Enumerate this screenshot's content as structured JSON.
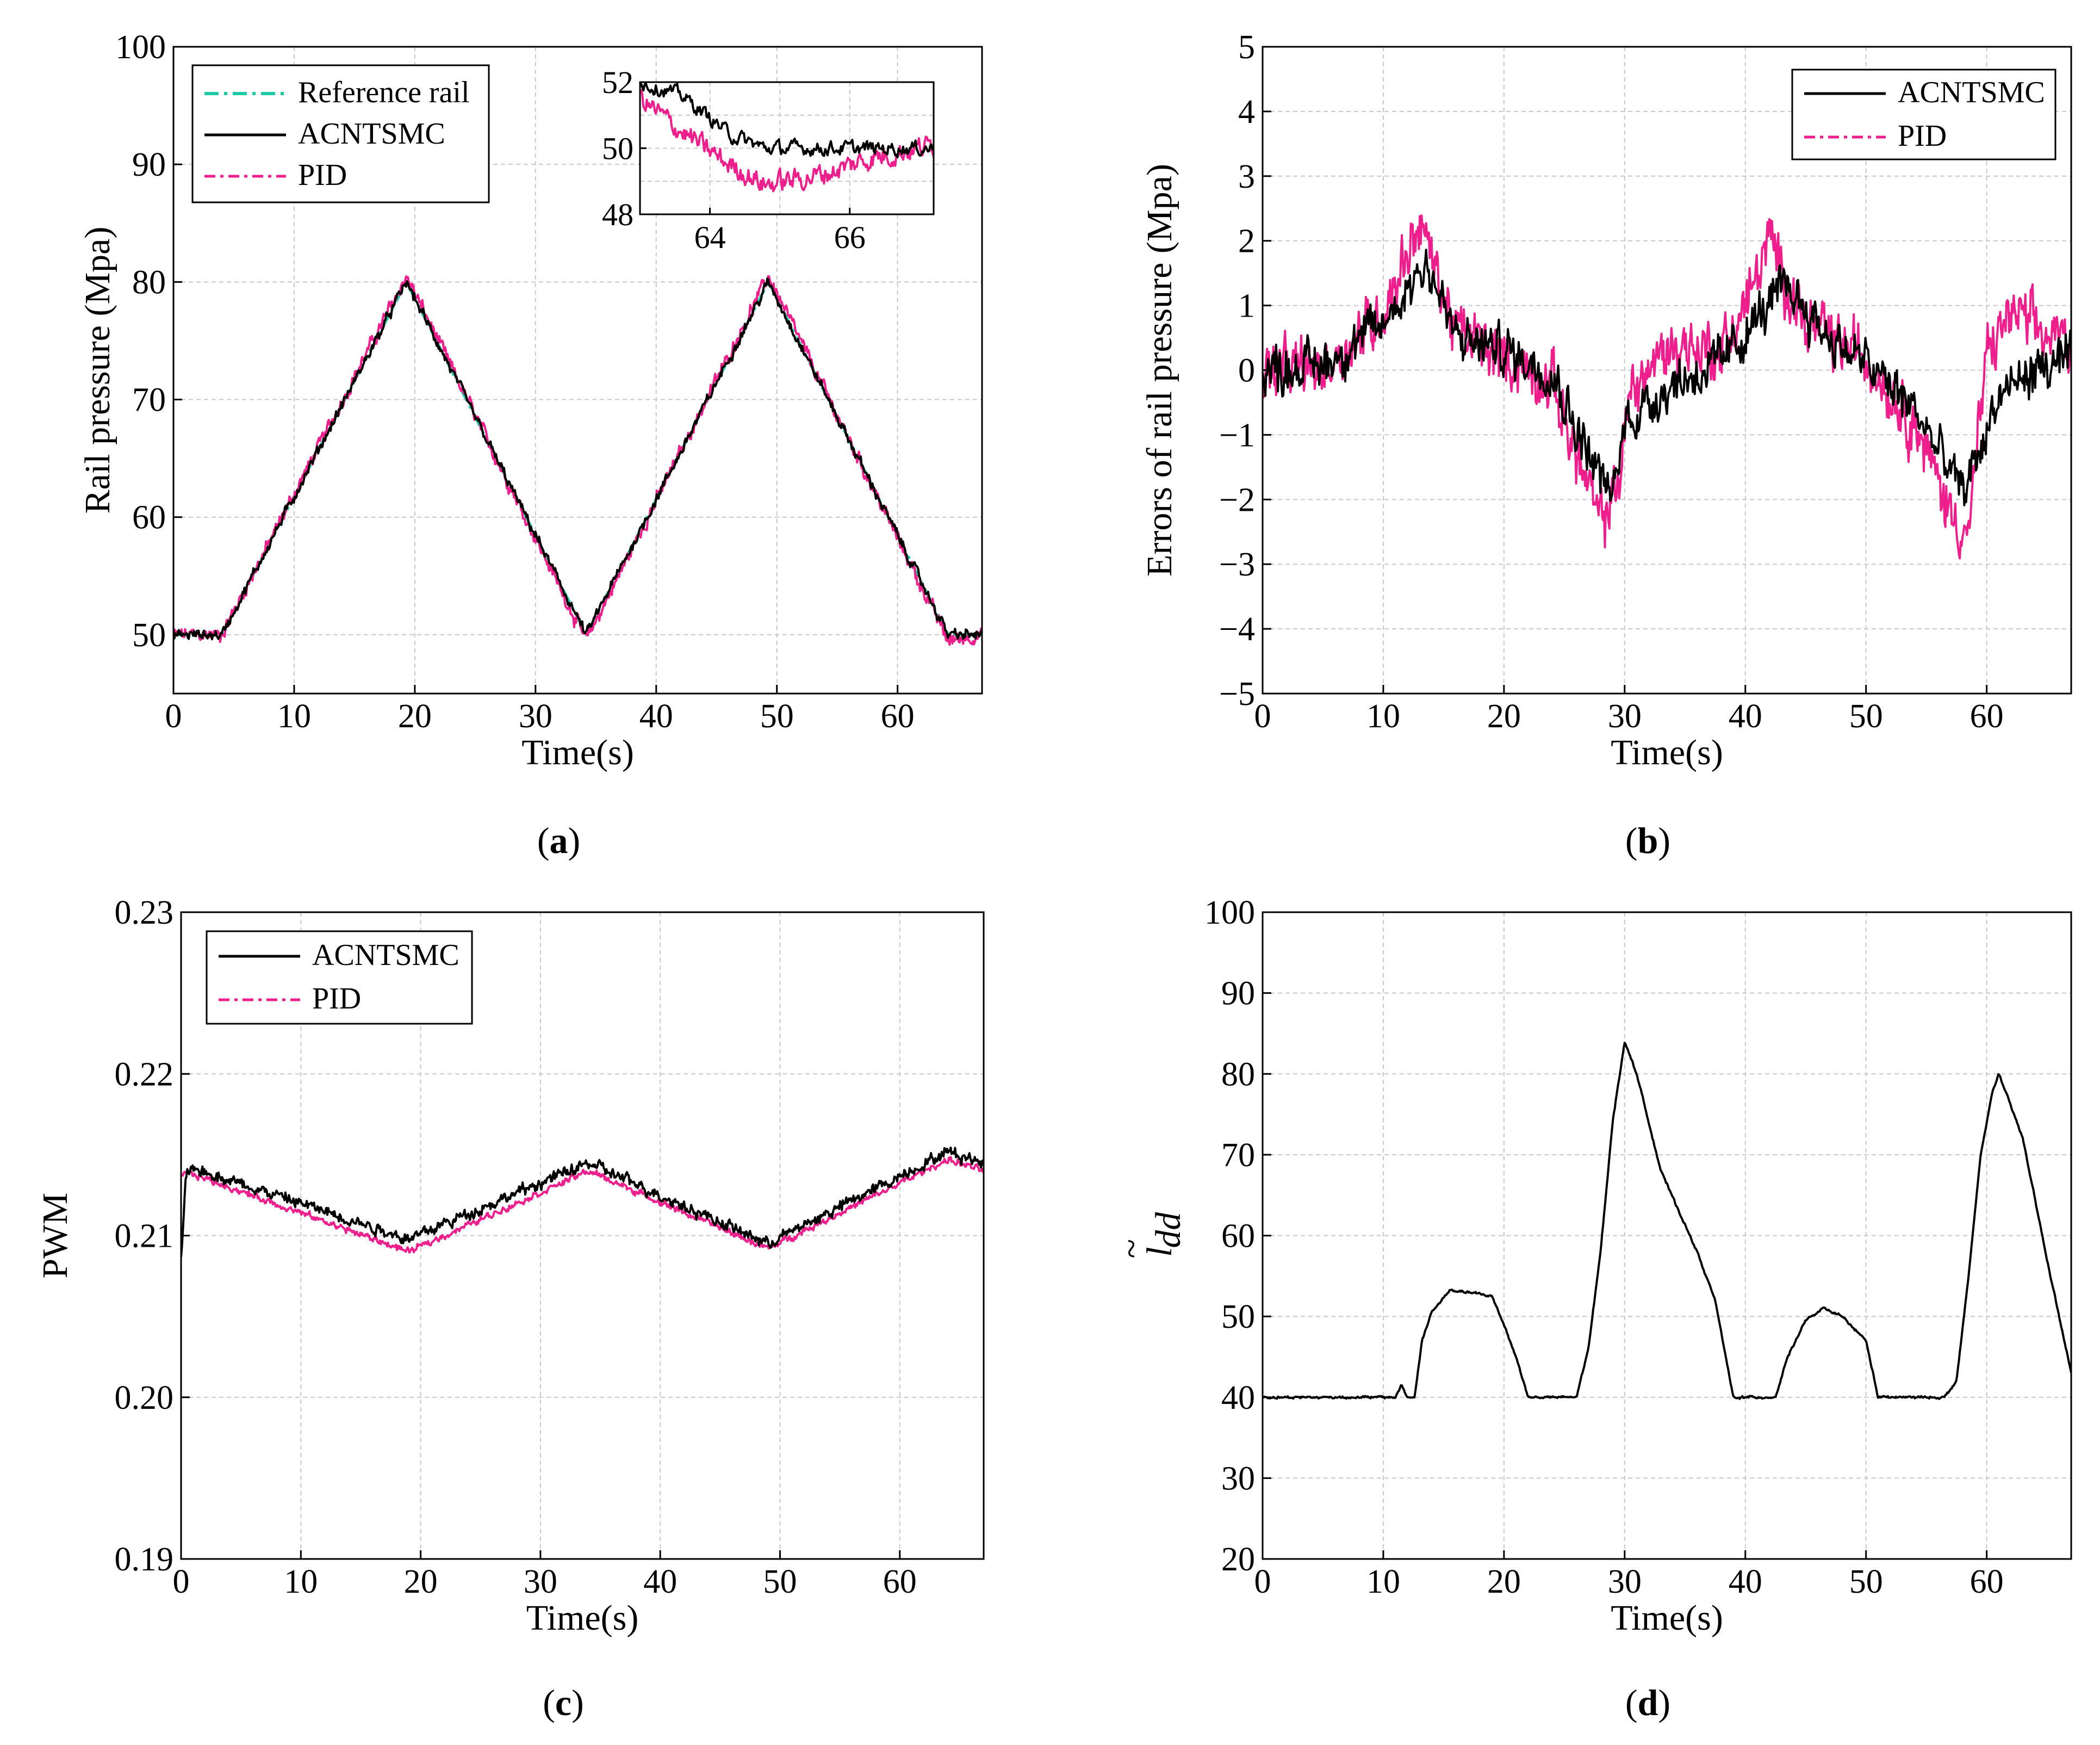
{
  "colors": {
    "reference": "#1fc9a6",
    "acntsmc": "#000000",
    "pid": "#ee1f8c",
    "grid": "#c8c8c8"
  },
  "chart_data": [
    {
      "id": "a",
      "type": "line",
      "caption_label": "a",
      "xlabel": "Time(s)",
      "ylabel": "Rail pressure (Mpa)",
      "xlim": [
        0,
        67
      ],
      "ylim": [
        45,
        100
      ],
      "xticks": [
        0,
        10,
        20,
        30,
        40,
        50,
        60
      ],
      "yticks": [
        50,
        60,
        70,
        80,
        90,
        100
      ],
      "legend": [
        "Reference rail",
        "ACNTSMC",
        "PID"
      ],
      "series": [
        {
          "name": "Reference rail",
          "style": "reference",
          "x": [
            0,
            4,
            19.3,
            34.2,
            49.3,
            64.2,
            67
          ],
          "y": [
            50,
            50,
            80,
            50,
            80,
            50,
            50
          ]
        },
        {
          "name": "ACNTSMC",
          "style": "acntsmc",
          "x": [
            0,
            4,
            19.3,
            34.2,
            49.3,
            64.2,
            67
          ],
          "y": [
            50,
            50,
            80,
            50,
            80,
            50,
            50
          ]
        },
        {
          "name": "PID",
          "style": "pid",
          "x": [
            0,
            4,
            19.3,
            34.2,
            49.3,
            64.2,
            67
          ],
          "y": [
            50,
            50,
            80.5,
            49.5,
            80.5,
            49.5,
            50
          ]
        }
      ],
      "inset": {
        "xlim": [
          63,
          67.2
        ],
        "ylim": [
          48,
          52
        ],
        "xticks": [
          64,
          66
        ],
        "yticks": [
          48,
          50,
          52
        ],
        "series": [
          {
            "name": "ACNTSMC",
            "style": "acntsmc",
            "x": [
              63,
              63.6,
              64.3,
              64.8,
              67.2
            ],
            "y": [
              52,
              51.6,
              50.4,
              50.0,
              50.0
            ]
          },
          {
            "name": "PID",
            "style": "pid",
            "x": [
              63,
              63.6,
              64.2,
              64.8,
              65.6,
              66.3,
              67.2
            ],
            "y": [
              51.5,
              50.5,
              49.6,
              48.9,
              49.2,
              49.7,
              50.1
            ]
          }
        ]
      }
    },
    {
      "id": "b",
      "type": "line",
      "caption_label": "b",
      "xlabel": "Time(s)",
      "ylabel": "Errors of rail pressure (Mpa)",
      "xlim": [
        0,
        67
      ],
      "ylim": [
        -5,
        5
      ],
      "xticks": [
        0,
        10,
        20,
        30,
        40,
        50,
        60
      ],
      "yticks": [
        -5,
        -4,
        -3,
        -2,
        -1,
        0,
        1,
        2,
        3,
        4,
        5
      ],
      "ytick_labels": [
        "−5",
        "−4",
        "−3",
        "−2",
        "−1",
        "0",
        "1",
        "2",
        "3",
        "4",
        "5"
      ],
      "legend": [
        "ACNTSMC",
        "PID"
      ],
      "series": [
        {
          "name": "ACNTSMC",
          "style": "acntsmc",
          "x": [
            0,
            5,
            10,
            13.5,
            16,
            20,
            24,
            26,
            29,
            30,
            34,
            38,
            41,
            43.5,
            47,
            50,
            54,
            58,
            59.5,
            61,
            64,
            67
          ],
          "y": [
            0,
            0.1,
            0.7,
            1.7,
            0.5,
            0.3,
            0,
            -0.9,
            -2.0,
            -0.8,
            -0.2,
            0.1,
            0.8,
            1.3,
            0.5,
            0.1,
            -0.6,
            -1.9,
            -1.2,
            -0.4,
            0,
            0.1
          ]
        },
        {
          "name": "PID",
          "style": "pid",
          "x": [
            0,
            5,
            10,
            13,
            16,
            20,
            24,
            26,
            28,
            29.5,
            30.5,
            34,
            38,
            40,
            42,
            45,
            50,
            54,
            57,
            58.5,
            60,
            62,
            65,
            67
          ],
          "y": [
            0,
            0,
            0.9,
            2.3,
            0.6,
            0.2,
            -0.2,
            -1.3,
            -2.4,
            -1.7,
            -0.3,
            0.4,
            0.3,
            1.0,
            2.0,
            0.7,
            0.2,
            -0.8,
            -2.2,
            -2.5,
            0.2,
            0.9,
            0.5,
            0.5
          ]
        }
      ]
    },
    {
      "id": "c",
      "type": "line",
      "caption_label": "c",
      "xlabel": "Time(s)",
      "ylabel": "PWM",
      "xlim": [
        0,
        67
      ],
      "ylim": [
        0.19,
        0.23
      ],
      "xticks": [
        0,
        10,
        20,
        30,
        40,
        50,
        60
      ],
      "yticks": [
        0.19,
        0.2,
        0.21,
        0.22,
        0.23
      ],
      "ytick_labels": [
        "0.19",
        "0.20",
        "0.21",
        "0.22",
        "0.23"
      ],
      "legend": [
        "ACNTSMC",
        "PID"
      ],
      "series": [
        {
          "name": "ACNTSMC",
          "style": "acntsmc",
          "x": [
            0,
            0.4,
            1,
            19,
            34,
            49,
            64,
            67
          ],
          "y": [
            0.2085,
            0.2135,
            0.2142,
            0.2098,
            0.2145,
            0.2095,
            0.2152,
            0.2145
          ]
        },
        {
          "name": "PID",
          "style": "pid",
          "x": [
            0,
            1,
            19,
            34,
            49,
            64,
            67
          ],
          "y": [
            0.2138,
            0.2138,
            0.209,
            0.214,
            0.2092,
            0.2147,
            0.214
          ]
        }
      ]
    },
    {
      "id": "d",
      "type": "line",
      "caption_label": "d",
      "xlabel": "Time(s)",
      "ylabel_main": "l",
      "ylabel_sub": "dd",
      "ylabel_accent": "~",
      "xlim": [
        0,
        67
      ],
      "ylim": [
        20,
        100
      ],
      "xticks": [
        0,
        10,
        20,
        30,
        40,
        50,
        60
      ],
      "yticks": [
        20,
        30,
        40,
        50,
        60,
        70,
        80,
        90,
        100
      ],
      "series": [
        {
          "name": "ACNTSMC",
          "style": "acntsmc",
          "x": [
            0,
            11,
            11.5,
            12,
            12.6,
            13.2,
            14,
            15.5,
            17,
            19,
            20,
            21,
            22,
            26,
            27,
            28,
            29,
            30,
            31,
            33,
            36,
            37.5,
            39,
            42.5,
            43.5,
            45,
            46.5,
            48,
            50,
            51,
            56.5,
            57.5,
            58.5,
            59.5,
            60.5,
            61,
            63,
            65,
            66,
            67
          ],
          "y": [
            40,
            40,
            41.5,
            40,
            40,
            47,
            50.5,
            53.2,
            53,
            52.5,
            49,
            45,
            40,
            40,
            46,
            58,
            74,
            84,
            80,
            68,
            58,
            52,
            40,
            40,
            45,
            49.5,
            51,
            50,
            47,
            40,
            40,
            42,
            55,
            70,
            78,
            80,
            72,
            57,
            50,
            43
          ]
        }
      ]
    }
  ]
}
